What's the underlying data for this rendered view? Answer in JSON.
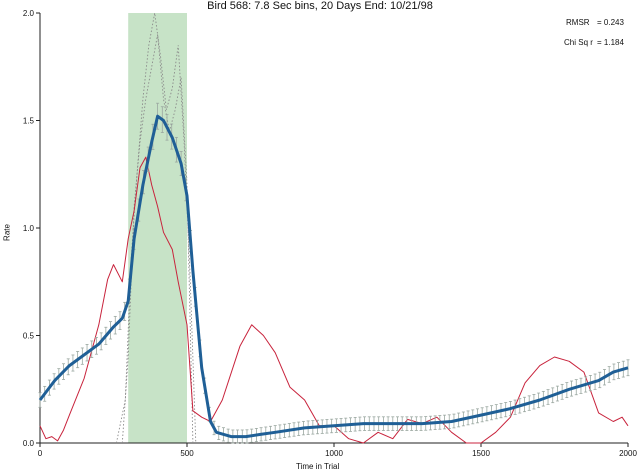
{
  "chart_data": {
    "type": "line",
    "title": "Bird 568: 7.8 Sec bins, 20 Days End: 10/21/98",
    "xlabel": "Time in Trial",
    "ylabel": "Rate",
    "xlim": [
      0,
      2000
    ],
    "ylim": [
      0,
      2.0
    ],
    "x_ticks": [
      "0",
      "500",
      "1000",
      "1500",
      "2000"
    ],
    "y_ticks": [
      "0.0",
      "0.5",
      "1.0",
      "1.5",
      "2.0"
    ],
    "grid": false,
    "highlight_band": {
      "x_start": 300,
      "x_end": 500,
      "color": "#c7e3c7"
    },
    "annotations": {
      "rmsr_label": "RMSR",
      "rmsr_value": "= 0.243",
      "chisq_label": "Chi Sq r",
      "chisq_value": "= 1.184"
    },
    "series": [
      {
        "role": "model fit",
        "color": "#1f5f96",
        "style": "thick-with-error-bars",
        "x": [
          0,
          50,
          100,
          150,
          200,
          250,
          280,
          300,
          320,
          350,
          380,
          400,
          420,
          450,
          480,
          500,
          520,
          550,
          580,
          600,
          650,
          700,
          750,
          800,
          900,
          1000,
          1100,
          1200,
          1300,
          1400,
          1500,
          1600,
          1700,
          1800,
          1900,
          1950,
          2000
        ],
        "values": [
          0.2,
          0.29,
          0.36,
          0.41,
          0.46,
          0.54,
          0.58,
          0.66,
          0.95,
          1.2,
          1.4,
          1.52,
          1.5,
          1.42,
          1.3,
          1.15,
          0.8,
          0.35,
          0.1,
          0.05,
          0.03,
          0.03,
          0.04,
          0.05,
          0.07,
          0.08,
          0.09,
          0.09,
          0.09,
          0.1,
          0.13,
          0.16,
          0.2,
          0.25,
          0.29,
          0.33,
          0.35
        ]
      },
      {
        "role": "observed",
        "color": "#c8233c",
        "style": "thin",
        "x": [
          0,
          20,
          40,
          60,
          80,
          100,
          150,
          200,
          230,
          250,
          280,
          300,
          320,
          340,
          360,
          380,
          400,
          420,
          450,
          470,
          500,
          520,
          550,
          580,
          620,
          680,
          720,
          760,
          800,
          850,
          900,
          950,
          1000,
          1050,
          1100,
          1150,
          1200,
          1250,
          1300,
          1350,
          1400,
          1450,
          1500,
          1550,
          1600,
          1650,
          1700,
          1750,
          1800,
          1850,
          1900,
          1950,
          1980,
          2000
        ],
        "values": [
          0.08,
          0.02,
          0.03,
          0.01,
          0.06,
          0.13,
          0.3,
          0.55,
          0.76,
          0.83,
          0.75,
          0.95,
          1.08,
          1.28,
          1.33,
          1.2,
          1.1,
          0.98,
          0.9,
          0.75,
          0.55,
          0.15,
          0.12,
          0.1,
          0.2,
          0.45,
          0.55,
          0.5,
          0.42,
          0.26,
          0.2,
          0.08,
          0.08,
          0.02,
          0.0,
          0.05,
          0.02,
          0.11,
          0.09,
          0.12,
          0.05,
          0.0,
          0.0,
          0.05,
          0.12,
          0.28,
          0.36,
          0.4,
          0.38,
          0.33,
          0.14,
          0.1,
          0.12,
          0.08
        ]
      },
      {
        "role": "dotted component",
        "color": "#8a8a8a",
        "style": "dotted",
        "x": [
          260,
          290,
          310,
          330,
          350,
          370,
          390,
          410,
          430,
          450,
          470,
          490,
          510,
          530
        ],
        "values": [
          0.0,
          0.2,
          0.85,
          1.25,
          1.6,
          1.85,
          2.0,
          1.8,
          1.55,
          1.65,
          1.85,
          1.4,
          0.8,
          0.0
        ]
      },
      {
        "role": "dotted component",
        "color": "#8a8a8a",
        "style": "dotted",
        "x": [
          280,
          300,
          320,
          340,
          360,
          380,
          400,
          420,
          440,
          460,
          480,
          500,
          520
        ],
        "values": [
          0.0,
          0.4,
          1.1,
          1.4,
          1.6,
          1.75,
          1.9,
          1.6,
          1.45,
          1.55,
          1.7,
          1.2,
          0.0
        ]
      }
    ]
  }
}
